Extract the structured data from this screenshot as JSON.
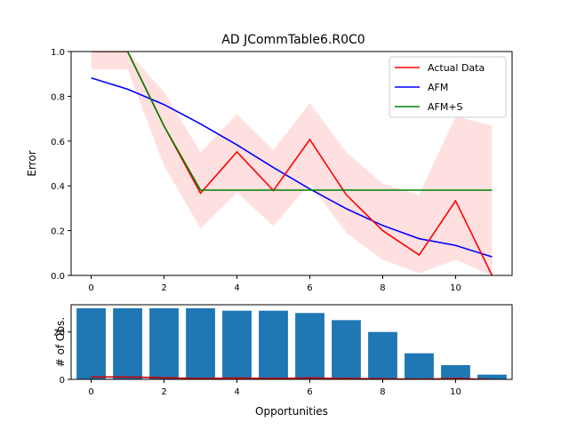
{
  "chart_data": [
    {
      "type": "line",
      "title": "AD JCommTable6.R0C0",
      "xlabel": "",
      "ylabel": "Error",
      "xlim": [
        -0.55,
        11.55
      ],
      "ylim": [
        0,
        1.0
      ],
      "xticks": [
        0,
        2,
        4,
        6,
        8,
        10
      ],
      "yticks": [
        0.0,
        0.2,
        0.4,
        0.6,
        0.8,
        1.0
      ],
      "legend_position": "top-right",
      "x": [
        0,
        1,
        2,
        3,
        4,
        5,
        6,
        7,
        8,
        9,
        10,
        11
      ],
      "series": [
        {
          "name": "Actual Data",
          "color": "#ff0000",
          "values": [
            1.0,
            1.0,
            0.667,
            0.367,
            0.552,
            0.379,
            0.607,
            0.36,
            0.2,
            0.091,
            0.333,
            0.0
          ]
        },
        {
          "name": "AFM",
          "color": "#0000ff",
          "values": [
            0.882,
            0.832,
            0.763,
            0.677,
            0.583,
            0.482,
            0.386,
            0.298,
            0.223,
            0.164,
            0.134,
            0.083
          ]
        },
        {
          "name": "AFM+S",
          "color": "#008000",
          "values": [
            1.08,
            1.0,
            0.667,
            0.381,
            0.381,
            0.381,
            0.381,
            0.381,
            0.381,
            0.381,
            0.381,
            0.381
          ]
        }
      ],
      "confidence_band": {
        "color": "#ffcccc",
        "upper": [
          1.0,
          1.0,
          0.82,
          0.55,
          0.72,
          0.56,
          0.77,
          0.55,
          0.41,
          0.36,
          0.71,
          0.67
        ],
        "lower": [
          0.92,
          0.92,
          0.49,
          0.21,
          0.37,
          0.22,
          0.41,
          0.19,
          0.07,
          0.01,
          0.07,
          0.0
        ]
      }
    },
    {
      "type": "bar",
      "xlabel": "Opportunities",
      "ylabel": "# of Obs.",
      "xlim": [
        -0.55,
        11.55
      ],
      "ylim": [
        0,
        31.5
      ],
      "xticks": [
        0,
        2,
        4,
        6,
        8,
        10
      ],
      "yticks": [
        0,
        20
      ],
      "x": [
        0,
        1,
        2,
        3,
        4,
        5,
        6,
        7,
        8,
        9,
        10,
        11
      ],
      "bar_color": "#1f77b4",
      "values": [
        30,
        30,
        30,
        30,
        29,
        29,
        28,
        25,
        20,
        11,
        6,
        2
      ],
      "line": {
        "color": "#cc0000",
        "values": [
          1,
          1,
          0.667,
          0.367,
          0.552,
          0.379,
          0.607,
          0.36,
          0.2,
          0.091,
          0.333,
          0.0
        ]
      }
    }
  ]
}
